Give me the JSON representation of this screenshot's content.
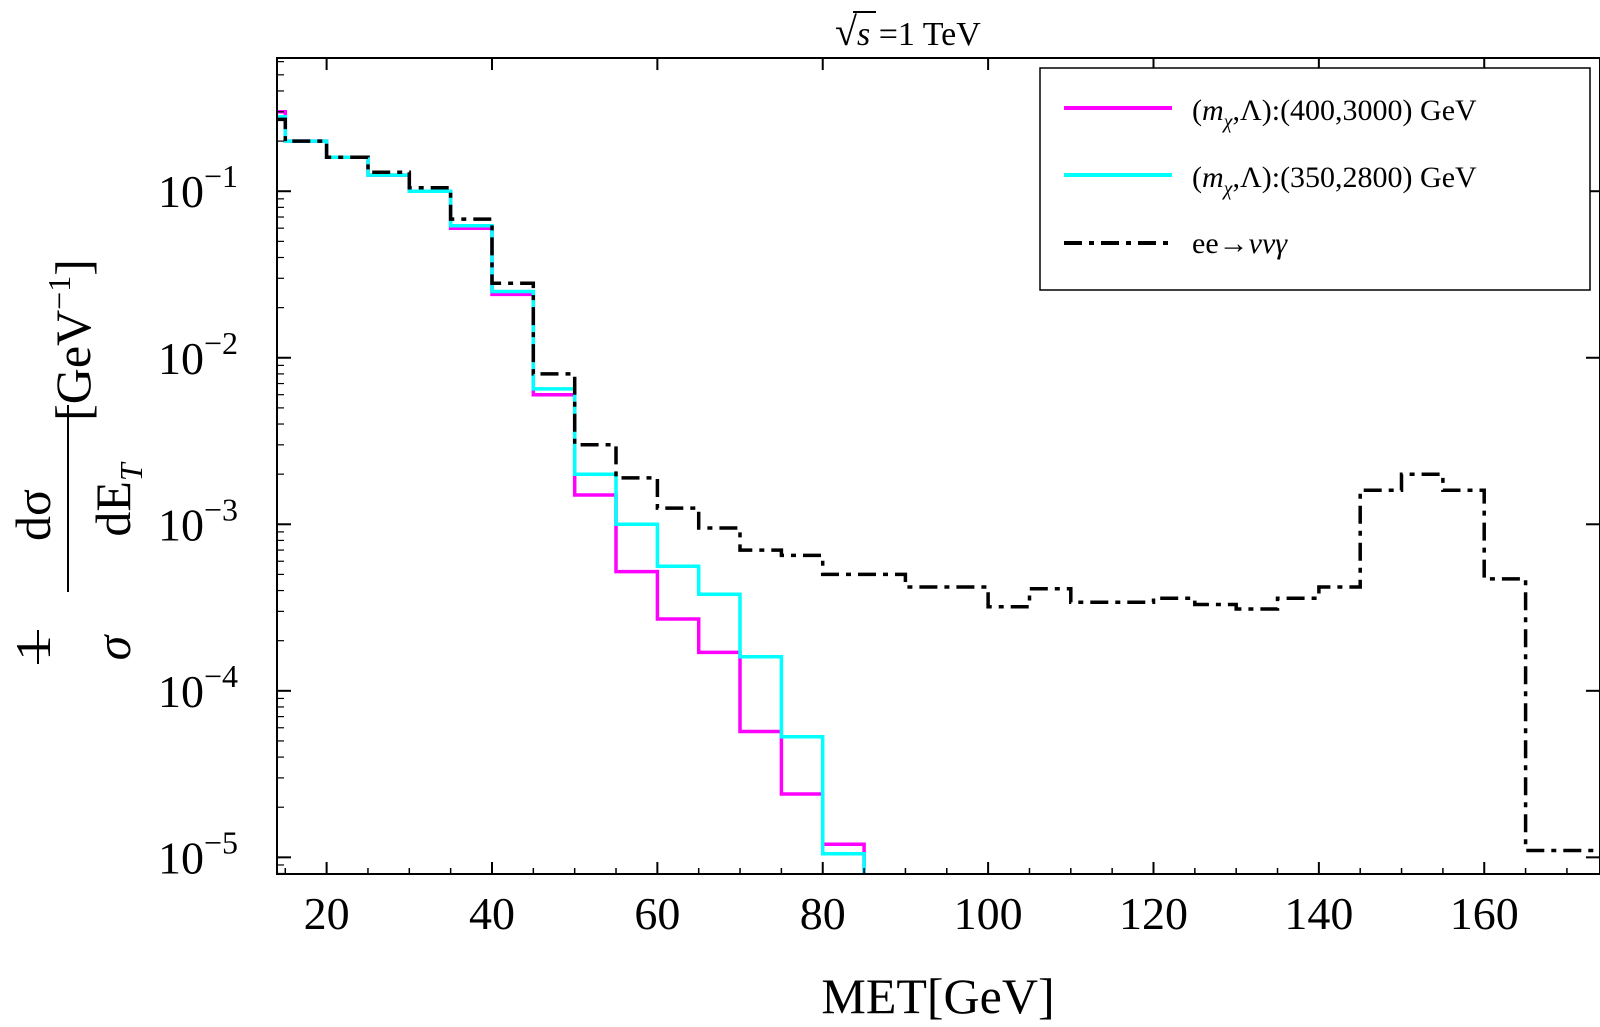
{
  "chart_data": {
    "type": "line",
    "step": true,
    "title": "√s =1 TeV",
    "title_radical": "√",
    "title_var": "s",
    "title_rest": " =1 TeV",
    "xlabel": "MET[GeV]",
    "ylabel": {
      "one": "1",
      "sigma": "σ",
      "dsigma": "dσ",
      "dE": "dE",
      "sub": "T",
      "unit_open": "[GeV",
      "unit_exp": "−1",
      "unit_close": "]"
    },
    "xlim": [
      14,
      174
    ],
    "ylim_log10": [
      -5.1,
      -0.2
    ],
    "x_ticks": [
      {
        "value": 20,
        "label": "20"
      },
      {
        "value": 40,
        "label": "40"
      },
      {
        "value": 60,
        "label": "60"
      },
      {
        "value": 80,
        "label": "80"
      },
      {
        "value": 100,
        "label": "100"
      },
      {
        "value": 120,
        "label": "120"
      },
      {
        "value": 140,
        "label": "140"
      },
      {
        "value": 160,
        "label": "160"
      }
    ],
    "y_ticks": [
      {
        "exp": -1,
        "base": "10",
        "sup": "−1"
      },
      {
        "exp": -2,
        "base": "10",
        "sup": "−2"
      },
      {
        "exp": -3,
        "base": "10",
        "sup": "−3"
      },
      {
        "exp": -4,
        "base": "10",
        "sup": "−4"
      },
      {
        "exp": -5,
        "base": "10",
        "sup": "−5"
      }
    ],
    "legend_position": "top-right",
    "series": [
      {
        "name": "(mχ,Λ):(400,3000) GeV",
        "legend_parts": {
          "open": "(",
          "m": "m",
          "sub": "χ",
          "rest": ",Λ):(400,3000) GeV"
        },
        "color": "#ff00ff",
        "dash": "solid",
        "edges": [
          14,
          15,
          20,
          25,
          30,
          35,
          40,
          45,
          50,
          55,
          60,
          65,
          70,
          75,
          80,
          85
        ],
        "values": [
          0.3,
          0.2,
          0.16,
          0.125,
          0.1,
          0.06,
          0.024,
          0.006,
          0.0015,
          0.00052,
          0.00027,
          0.00017,
          5.7e-05,
          2.4e-05,
          1.2e-05
        ]
      },
      {
        "name": "(mχ,Λ):(350,2800) GeV",
        "legend_parts": {
          "open": "(",
          "m": "m",
          "sub": "χ",
          "rest": ",Λ):(350,2800) GeV"
        },
        "color": "#00ffff",
        "dash": "solid",
        "edges": [
          14,
          15,
          20,
          25,
          30,
          35,
          40,
          45,
          50,
          55,
          60,
          65,
          70,
          75,
          80,
          85
        ],
        "values": [
          0.28,
          0.2,
          0.16,
          0.125,
          0.1,
          0.062,
          0.025,
          0.0065,
          0.002,
          0.001,
          0.00056,
          0.00038,
          0.00016,
          5.3e-05,
          1.05e-05
        ]
      },
      {
        "name": "ee→ννγ",
        "legend_parts": {
          "open": "ee→",
          "m": "ννγ",
          "sub": "",
          "rest": ""
        },
        "color": "#000000",
        "dash": "dashdot",
        "edges": [
          14,
          15,
          20,
          25,
          30,
          35,
          40,
          45,
          50,
          55,
          60,
          65,
          70,
          75,
          80,
          85,
          90,
          95,
          100,
          105,
          110,
          115,
          120,
          125,
          130,
          135,
          140,
          145,
          150,
          155,
          160,
          165,
          174
        ],
        "values": [
          0.27,
          0.2,
          0.16,
          0.13,
          0.105,
          0.068,
          0.028,
          0.008,
          0.003,
          0.0019,
          0.00125,
          0.00095,
          0.0007,
          0.00065,
          0.0005,
          0.0005,
          0.00042,
          0.00042,
          0.00032,
          0.00041,
          0.00034,
          0.00034,
          0.00036,
          0.00033,
          0.00031,
          0.00036,
          0.00042,
          0.0016,
          0.002,
          0.0016,
          0.00047,
          1.1e-05
        ]
      }
    ]
  }
}
